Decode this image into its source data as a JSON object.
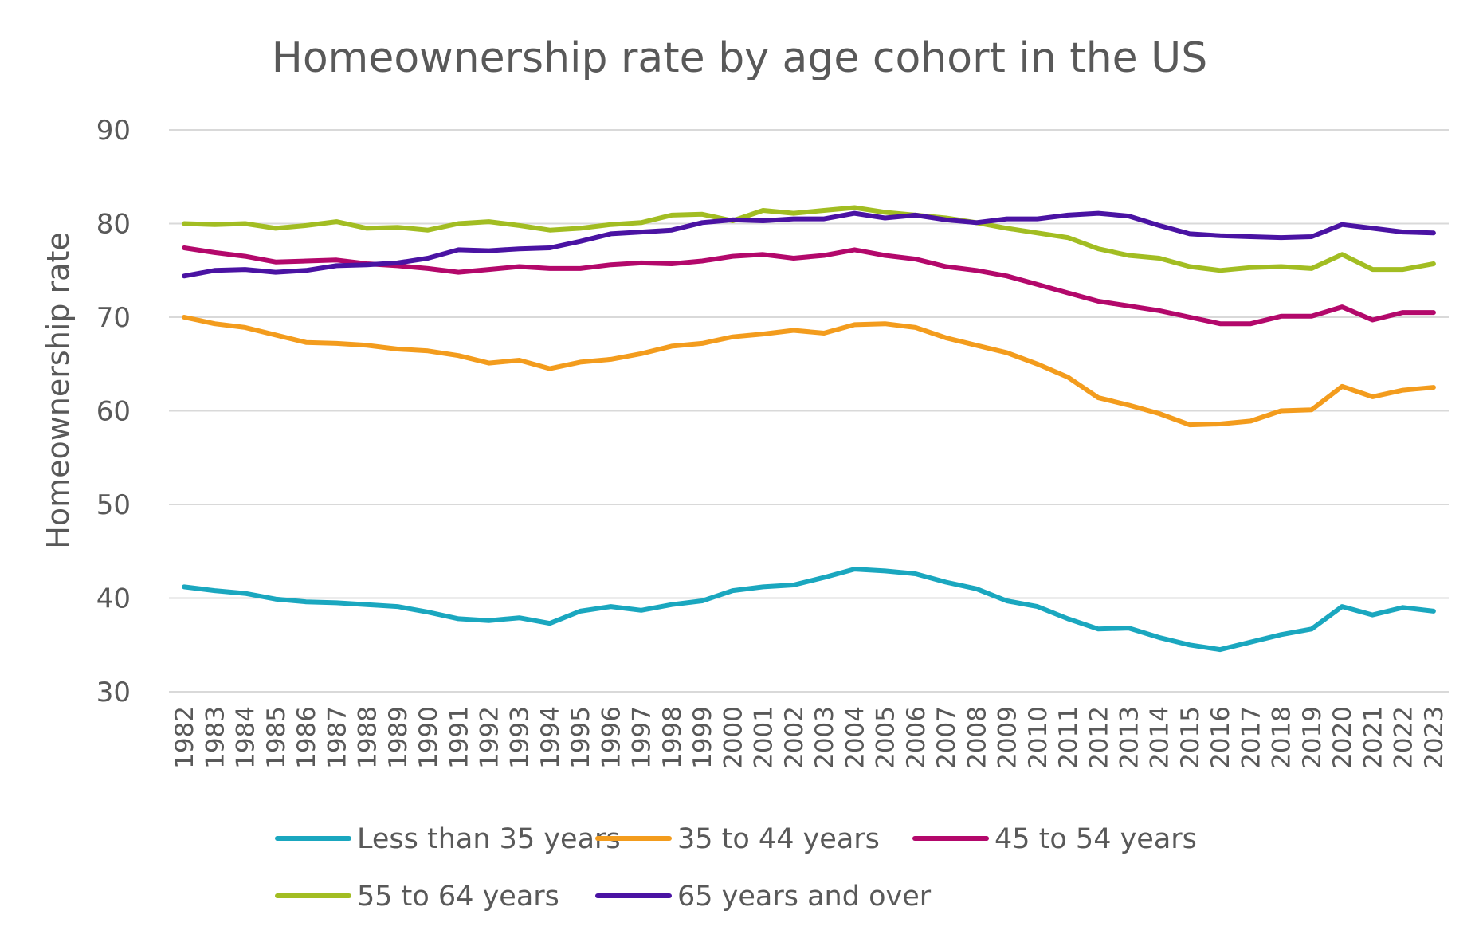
{
  "chart_data": {
    "type": "line",
    "title": "Homeownership rate by age cohort in the US",
    "xlabel": "",
    "ylabel": "Homeownership rate",
    "ylim": [
      30,
      90
    ],
    "yticks": [
      30,
      40,
      50,
      60,
      70,
      80,
      90
    ],
    "grid": true,
    "legend_position": "bottom",
    "x": [
      "1982",
      "1983",
      "1984",
      "1985",
      "1986",
      "1987",
      "1988",
      "1989",
      "1990",
      "1991",
      "1992",
      "1993",
      "1994",
      "1995",
      "1996",
      "1997",
      "1998",
      "1999",
      "2000",
      "2001",
      "2002",
      "2003",
      "2004",
      "2005",
      "2006",
      "2007",
      "2008",
      "2009",
      "2010",
      "2011",
      "2012",
      "2013",
      "2014",
      "2015",
      "2016",
      "2017",
      "2018",
      "2019",
      "2020",
      "2021",
      "2022",
      "2023"
    ],
    "series": [
      {
        "name": "Less than 35 years",
        "color": "#1aa7bf",
        "values": [
          41.2,
          40.8,
          40.5,
          39.9,
          39.6,
          39.5,
          39.3,
          39.1,
          38.5,
          37.8,
          37.6,
          37.9,
          37.3,
          38.6,
          39.1,
          38.7,
          39.3,
          39.7,
          40.8,
          41.2,
          41.4,
          42.2,
          43.1,
          42.9,
          42.6,
          41.7,
          41.0,
          39.7,
          39.1,
          37.8,
          36.7,
          36.8,
          35.8,
          35.0,
          34.5,
          35.3,
          36.1,
          36.7,
          39.1,
          38.2,
          39.0,
          38.6
        ]
      },
      {
        "name": "35 to 44 years",
        "color": "#f39c1d",
        "values": [
          70.0,
          69.3,
          68.9,
          68.1,
          67.3,
          67.2,
          67.0,
          66.6,
          66.4,
          65.9,
          65.1,
          65.4,
          64.5,
          65.2,
          65.5,
          66.1,
          66.9,
          67.2,
          67.9,
          68.2,
          68.6,
          68.3,
          69.2,
          69.3,
          68.9,
          67.8,
          67.0,
          66.2,
          65.0,
          63.6,
          61.4,
          60.6,
          59.7,
          58.5,
          58.6,
          58.9,
          60.0,
          60.1,
          62.6,
          61.5,
          62.2,
          62.5
        ]
      },
      {
        "name": "45 to 54 years",
        "color": "#b3086b",
        "values": [
          77.4,
          76.9,
          76.5,
          75.9,
          76.0,
          76.1,
          75.7,
          75.5,
          75.2,
          74.8,
          75.1,
          75.4,
          75.2,
          75.2,
          75.6,
          75.8,
          75.7,
          76.0,
          76.5,
          76.7,
          76.3,
          76.6,
          77.2,
          76.6,
          76.2,
          75.4,
          75.0,
          74.4,
          73.5,
          72.6,
          71.7,
          71.2,
          70.7,
          70.0,
          69.3,
          69.3,
          70.1,
          70.1,
          71.1,
          69.7,
          70.5,
          70.5
        ]
      },
      {
        "name": "55 to 64 years",
        "color": "#a2bd22",
        "values": [
          80.0,
          79.9,
          80.0,
          79.5,
          79.8,
          80.2,
          79.5,
          79.6,
          79.3,
          80.0,
          80.2,
          79.8,
          79.3,
          79.5,
          79.9,
          80.1,
          80.9,
          81.0,
          80.3,
          81.4,
          81.1,
          81.4,
          81.7,
          81.2,
          80.9,
          80.6,
          80.1,
          79.5,
          79.0,
          78.5,
          77.3,
          76.6,
          76.3,
          75.4,
          75.0,
          75.3,
          75.4,
          75.2,
          76.7,
          75.1,
          75.1,
          75.7
        ]
      },
      {
        "name": "65 years and over",
        "color": "#4a13a3",
        "values": [
          74.4,
          75.0,
          75.1,
          74.8,
          75.0,
          75.5,
          75.6,
          75.8,
          76.3,
          77.2,
          77.1,
          77.3,
          77.4,
          78.1,
          78.9,
          79.1,
          79.3,
          80.1,
          80.4,
          80.3,
          80.5,
          80.5,
          81.1,
          80.6,
          80.9,
          80.4,
          80.1,
          80.5,
          80.5,
          80.9,
          81.1,
          80.8,
          79.8,
          78.9,
          78.7,
          78.6,
          78.5,
          78.6,
          79.9,
          79.5,
          79.1,
          79.0
        ]
      }
    ]
  }
}
